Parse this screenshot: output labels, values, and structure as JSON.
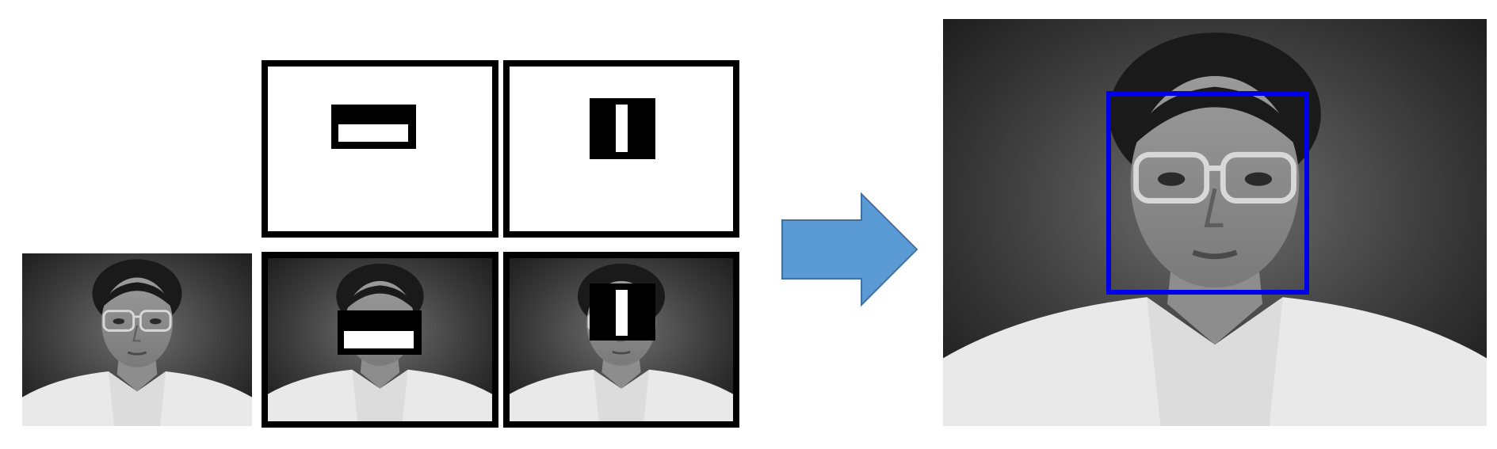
{
  "figure": {
    "input_image": {
      "icon": "face-photo"
    },
    "haar_features": [
      {
        "name": "edge-feature",
        "orientation": "horizontal",
        "colors": [
          "#000000",
          "#ffffff"
        ]
      },
      {
        "name": "line-feature",
        "orientation": "vertical",
        "colors": [
          "#000000",
          "#ffffff"
        ]
      }
    ],
    "arrow": {
      "color": "#5b9bd5",
      "icon": "right-arrow"
    },
    "output_image": {
      "icon": "face-photo",
      "detection_box_color": "#0000e6"
    }
  }
}
